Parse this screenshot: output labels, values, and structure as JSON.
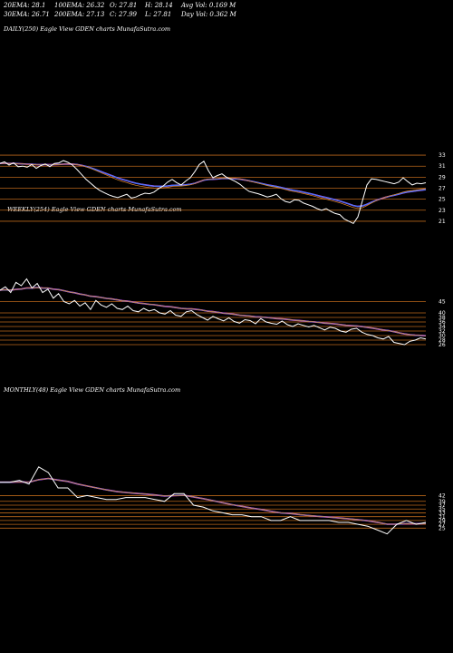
{
  "stats": {
    "ema20": "20EMA: 28.1",
    "ema100": "100EMA: 26.32",
    "open": "O: 27.81",
    "high": "H: 28.14",
    "avg_vol": "Avg Vol: 0.169 M",
    "ema30": "30EMA: 26.71",
    "ema200": "200EMA: 27.13",
    "close": "C: 27.99",
    "low": "L: 27.81",
    "day_vol": "Day Vol: 0.362 M"
  },
  "panels": {
    "daily_title": "DAILY(250) Eagle View GDEN charts MunafaSutra.com",
    "weekly_title": "WEEKLY(254) Eagle View GDEN charts MunafaSutra.com",
    "monthly_title": "MONTHLY(48) Eagle View GDEN charts MunafaSutra.com"
  },
  "colors": {
    "background": "#000000",
    "price": "#ffffff",
    "level_lines": "#b8661a",
    "ema_magenta": "#ff33ff",
    "ema_blue": "#3a78ff",
    "ema_orange": "#e08a2a",
    "ema_grey": "#bbbbbb"
  },
  "chart_data": [
    {
      "type": "line",
      "timeframe": "daily",
      "levels": [
        33,
        31,
        29,
        27,
        25,
        23,
        21
      ],
      "ylim": [
        20,
        34
      ],
      "series": [
        {
          "values": [
            31.5,
            31.8,
            31.2,
            31.6,
            30.9,
            31.0,
            30.8,
            31.3,
            30.6,
            31.1,
            31.4,
            30.9,
            31.5,
            31.6,
            32.0,
            31.7,
            31.2,
            30.4,
            29.5,
            28.6,
            27.9,
            27.2,
            26.6,
            26.2,
            25.8,
            25.5,
            25.3,
            25.6,
            25.9,
            25.2,
            25.4,
            25.8,
            26.1,
            26.0,
            26.3,
            26.9,
            27.4,
            28.1,
            28.6,
            28.0,
            27.6,
            28.3,
            28.9,
            30.0,
            31.3,
            31.9,
            30.2,
            28.9,
            29.3,
            29.6,
            29.0,
            28.6,
            28.2,
            27.7,
            27.0,
            26.4,
            26.2,
            26.0,
            25.7,
            25.4,
            25.6,
            25.9,
            25.1,
            24.6,
            24.4,
            24.9,
            24.8,
            24.3,
            24.0,
            23.7,
            23.3,
            23.0,
            23.3,
            22.8,
            22.4,
            22.2,
            21.4,
            21.0,
            20.6,
            21.8,
            24.7,
            27.6,
            28.7,
            28.6,
            28.4,
            28.2,
            28.0,
            27.8,
            28.1,
            28.9,
            28.2,
            27.6,
            27.9,
            27.8,
            27.99
          ]
        }
      ]
    },
    {
      "type": "line",
      "timeframe": "weekly",
      "levels": [
        45,
        40,
        38,
        36,
        34,
        32,
        30,
        28,
        26
      ],
      "ylim": [
        22,
        58
      ],
      "series": [
        {
          "values": [
            50.0,
            51.5,
            49.0,
            53.5,
            52.0,
            55.0,
            51.0,
            53.0,
            49.0,
            50.5,
            46.5,
            48.5,
            45.0,
            44.0,
            45.5,
            43.0,
            44.5,
            41.5,
            45.5,
            43.5,
            42.5,
            44.0,
            42.0,
            41.5,
            43.0,
            41.0,
            40.5,
            42.0,
            40.8,
            41.5,
            40.0,
            39.5,
            41.0,
            39.0,
            38.5,
            40.5,
            41.0,
            39.2,
            38.0,
            36.8,
            38.5,
            37.4,
            36.5,
            37.8,
            36.2,
            35.5,
            37.0,
            36.6,
            35.2,
            37.5,
            36.0,
            35.4,
            35.0,
            36.4,
            34.8,
            34.0,
            35.2,
            34.5,
            33.8,
            34.5,
            33.5,
            32.5,
            33.7,
            33.2,
            32.0,
            31.5,
            32.8,
            33.2,
            31.5,
            30.5,
            30.0,
            29.0,
            28.5,
            29.6,
            27.0,
            26.5,
            26.0,
            27.5,
            28.0,
            29.0,
            28.5
          ]
        }
      ]
    },
    {
      "type": "line",
      "timeframe": "monthly",
      "levels": [
        42,
        39,
        37,
        35,
        33,
        31,
        29,
        27,
        25
      ],
      "ylim": [
        19,
        64
      ],
      "series": [
        {
          "values": [
            49,
            49,
            50,
            48,
            57,
            54,
            46,
            46,
            41,
            42,
            41,
            40,
            40,
            41,
            41,
            41,
            40,
            39,
            43,
            43,
            37,
            36,
            34,
            33,
            32,
            32,
            31,
            31,
            29,
            29,
            31,
            29,
            29,
            29,
            29,
            28,
            28,
            27,
            26,
            24,
            22,
            27,
            29,
            27,
            28
          ]
        }
      ]
    }
  ]
}
